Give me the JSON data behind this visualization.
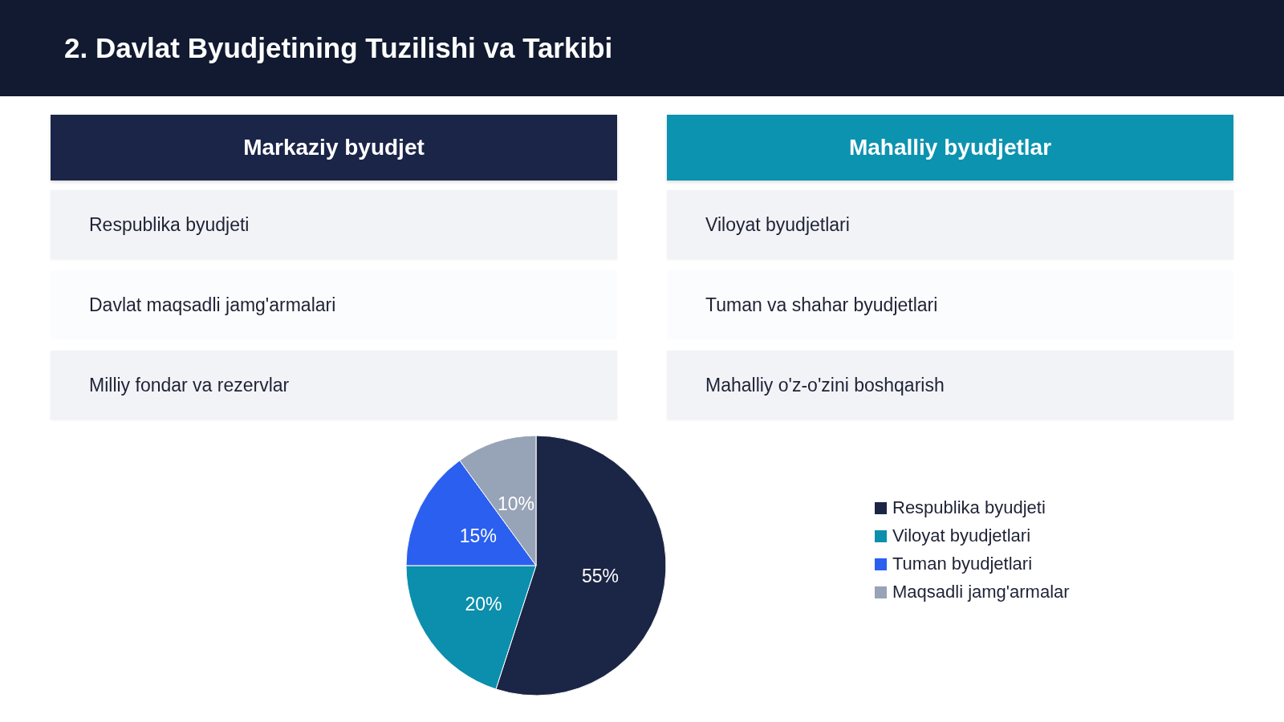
{
  "chart_data": [
    {
      "type": "other",
      "title": "2. Davlat Byudjetining Tuzilishi va Tarkibi"
    },
    {
      "type": "other",
      "title": "Markaziy byudjet",
      "annotations": [
        "Respublika byudjeti",
        "Davlat maqsadli jamg'armalari",
        "Milliy fondar va rezervlar"
      ]
    },
    {
      "type": "other",
      "title": "Mahalliy byudjetlar",
      "annotations": [
        "Viloyat byudjetlari",
        "Tuman va shahar byudjetlari",
        "Mahalliy o'z-o'zini boshqarish"
      ]
    },
    {
      "type": "pie",
      "categories": [
        "Respublika byudjeti",
        "Viloyat byudjetlari",
        "Tuman byudjetlari",
        "Maqsadli jamg'armalar"
      ],
      "values": [
        55,
        20,
        15,
        10
      ],
      "colors": [
        "#1b2545",
        "#0b8fac",
        "#2a5ff0",
        "#97a3b6"
      ],
      "value_labels": [
        "55%",
        "20%",
        "15%",
        "10%"
      ],
      "legend": "right"
    }
  ]
}
